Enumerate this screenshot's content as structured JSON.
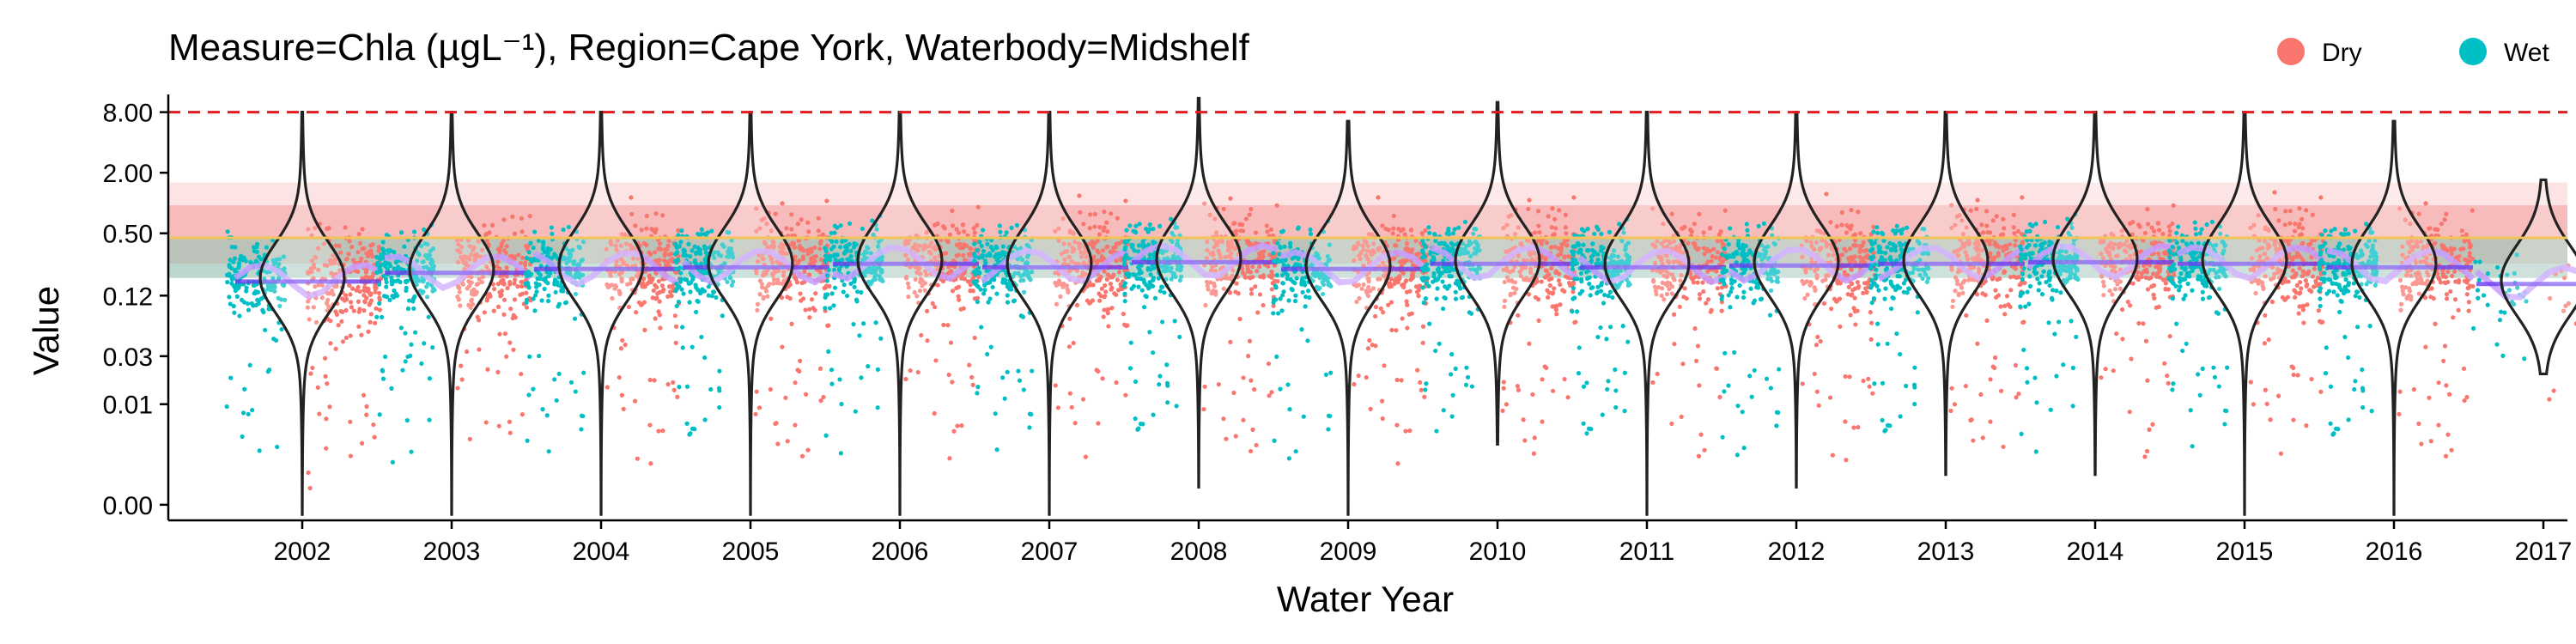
{
  "chart_data": {
    "type": "scatter",
    "title": "Measure=Chla (µgL⁻¹), Region=Cape York, Waterbody=Midshelf",
    "xlabel": "Water Year",
    "ylabel": "Value",
    "categories": [
      "2002",
      "2003",
      "2004",
      "2005",
      "2006",
      "2007",
      "2008",
      "2009",
      "2010",
      "2011",
      "2012",
      "2013",
      "2014",
      "2015",
      "2016",
      "2017"
    ],
    "ytick_labels": [
      "0.00",
      "0.01",
      "0.03",
      "0.12",
      "0.50",
      "2.00",
      "8.00"
    ],
    "ytick_values": [
      0.001,
      0.01,
      0.03,
      0.12,
      0.5,
      2.0,
      8.0
    ],
    "ylim": [
      0.0007,
      12
    ],
    "y_scale": "log",
    "reference_line": {
      "value": 8.0,
      "color": "#e41a1c",
      "style": "dashed"
    },
    "guideline": {
      "value": 0.45,
      "color": "#f2c45a"
    },
    "bands": [
      {
        "low": 0.18,
        "high": 1.6,
        "color": "#f7b3b3",
        "opacity": 0.35
      },
      {
        "low": 0.25,
        "high": 0.95,
        "color": "#f28a8a",
        "opacity": 0.45
      },
      {
        "low": 0.18,
        "high": 0.45,
        "color": "#7fc9b8",
        "opacity": 0.5
      }
    ],
    "legend": {
      "placement": "top-right",
      "entries": [
        {
          "label": "Dry",
          "color": "#f8766d"
        },
        {
          "label": "Wet",
          "color": "#00bfc4"
        }
      ]
    },
    "series": [
      {
        "name": "Dry",
        "color": "#f8766d"
      },
      {
        "name": "Wet",
        "color": "#00bfc4"
      }
    ],
    "violins": [
      {
        "year": "2002",
        "min": 0.0008,
        "max": 8.0,
        "median": 0.18
      },
      {
        "year": "2003",
        "min": 0.0008,
        "max": 8.0,
        "median": 0.22
      },
      {
        "year": "2004",
        "min": 0.0008,
        "max": 8.0,
        "median": 0.24
      },
      {
        "year": "2005",
        "min": 0.0008,
        "max": 8.0,
        "median": 0.25
      },
      {
        "year": "2006",
        "min": 0.0008,
        "max": 8.0,
        "median": 0.27
      },
      {
        "year": "2007",
        "min": 0.0008,
        "max": 8.0,
        "median": 0.25
      },
      {
        "year": "2008",
        "min": 0.0015,
        "max": 11.0,
        "median": 0.28
      },
      {
        "year": "2009",
        "min": 0.0008,
        "max": 6.5,
        "median": 0.24
      },
      {
        "year": "2010",
        "min": 0.004,
        "max": 10.0,
        "median": 0.27
      },
      {
        "year": "2011",
        "min": 0.0008,
        "max": 8.0,
        "median": 0.25
      },
      {
        "year": "2012",
        "min": 0.0015,
        "max": 8.0,
        "median": 0.26
      },
      {
        "year": "2013",
        "min": 0.002,
        "max": 8.0,
        "median": 0.27
      },
      {
        "year": "2014",
        "min": 0.002,
        "max": 8.0,
        "median": 0.28
      },
      {
        "year": "2015",
        "min": 0.0008,
        "max": 8.0,
        "median": 0.27
      },
      {
        "year": "2016",
        "min": 0.0008,
        "max": 6.5,
        "median": 0.25
      },
      {
        "year": "2017",
        "min": 0.02,
        "max": 1.7,
        "median": 0.17
      }
    ]
  }
}
